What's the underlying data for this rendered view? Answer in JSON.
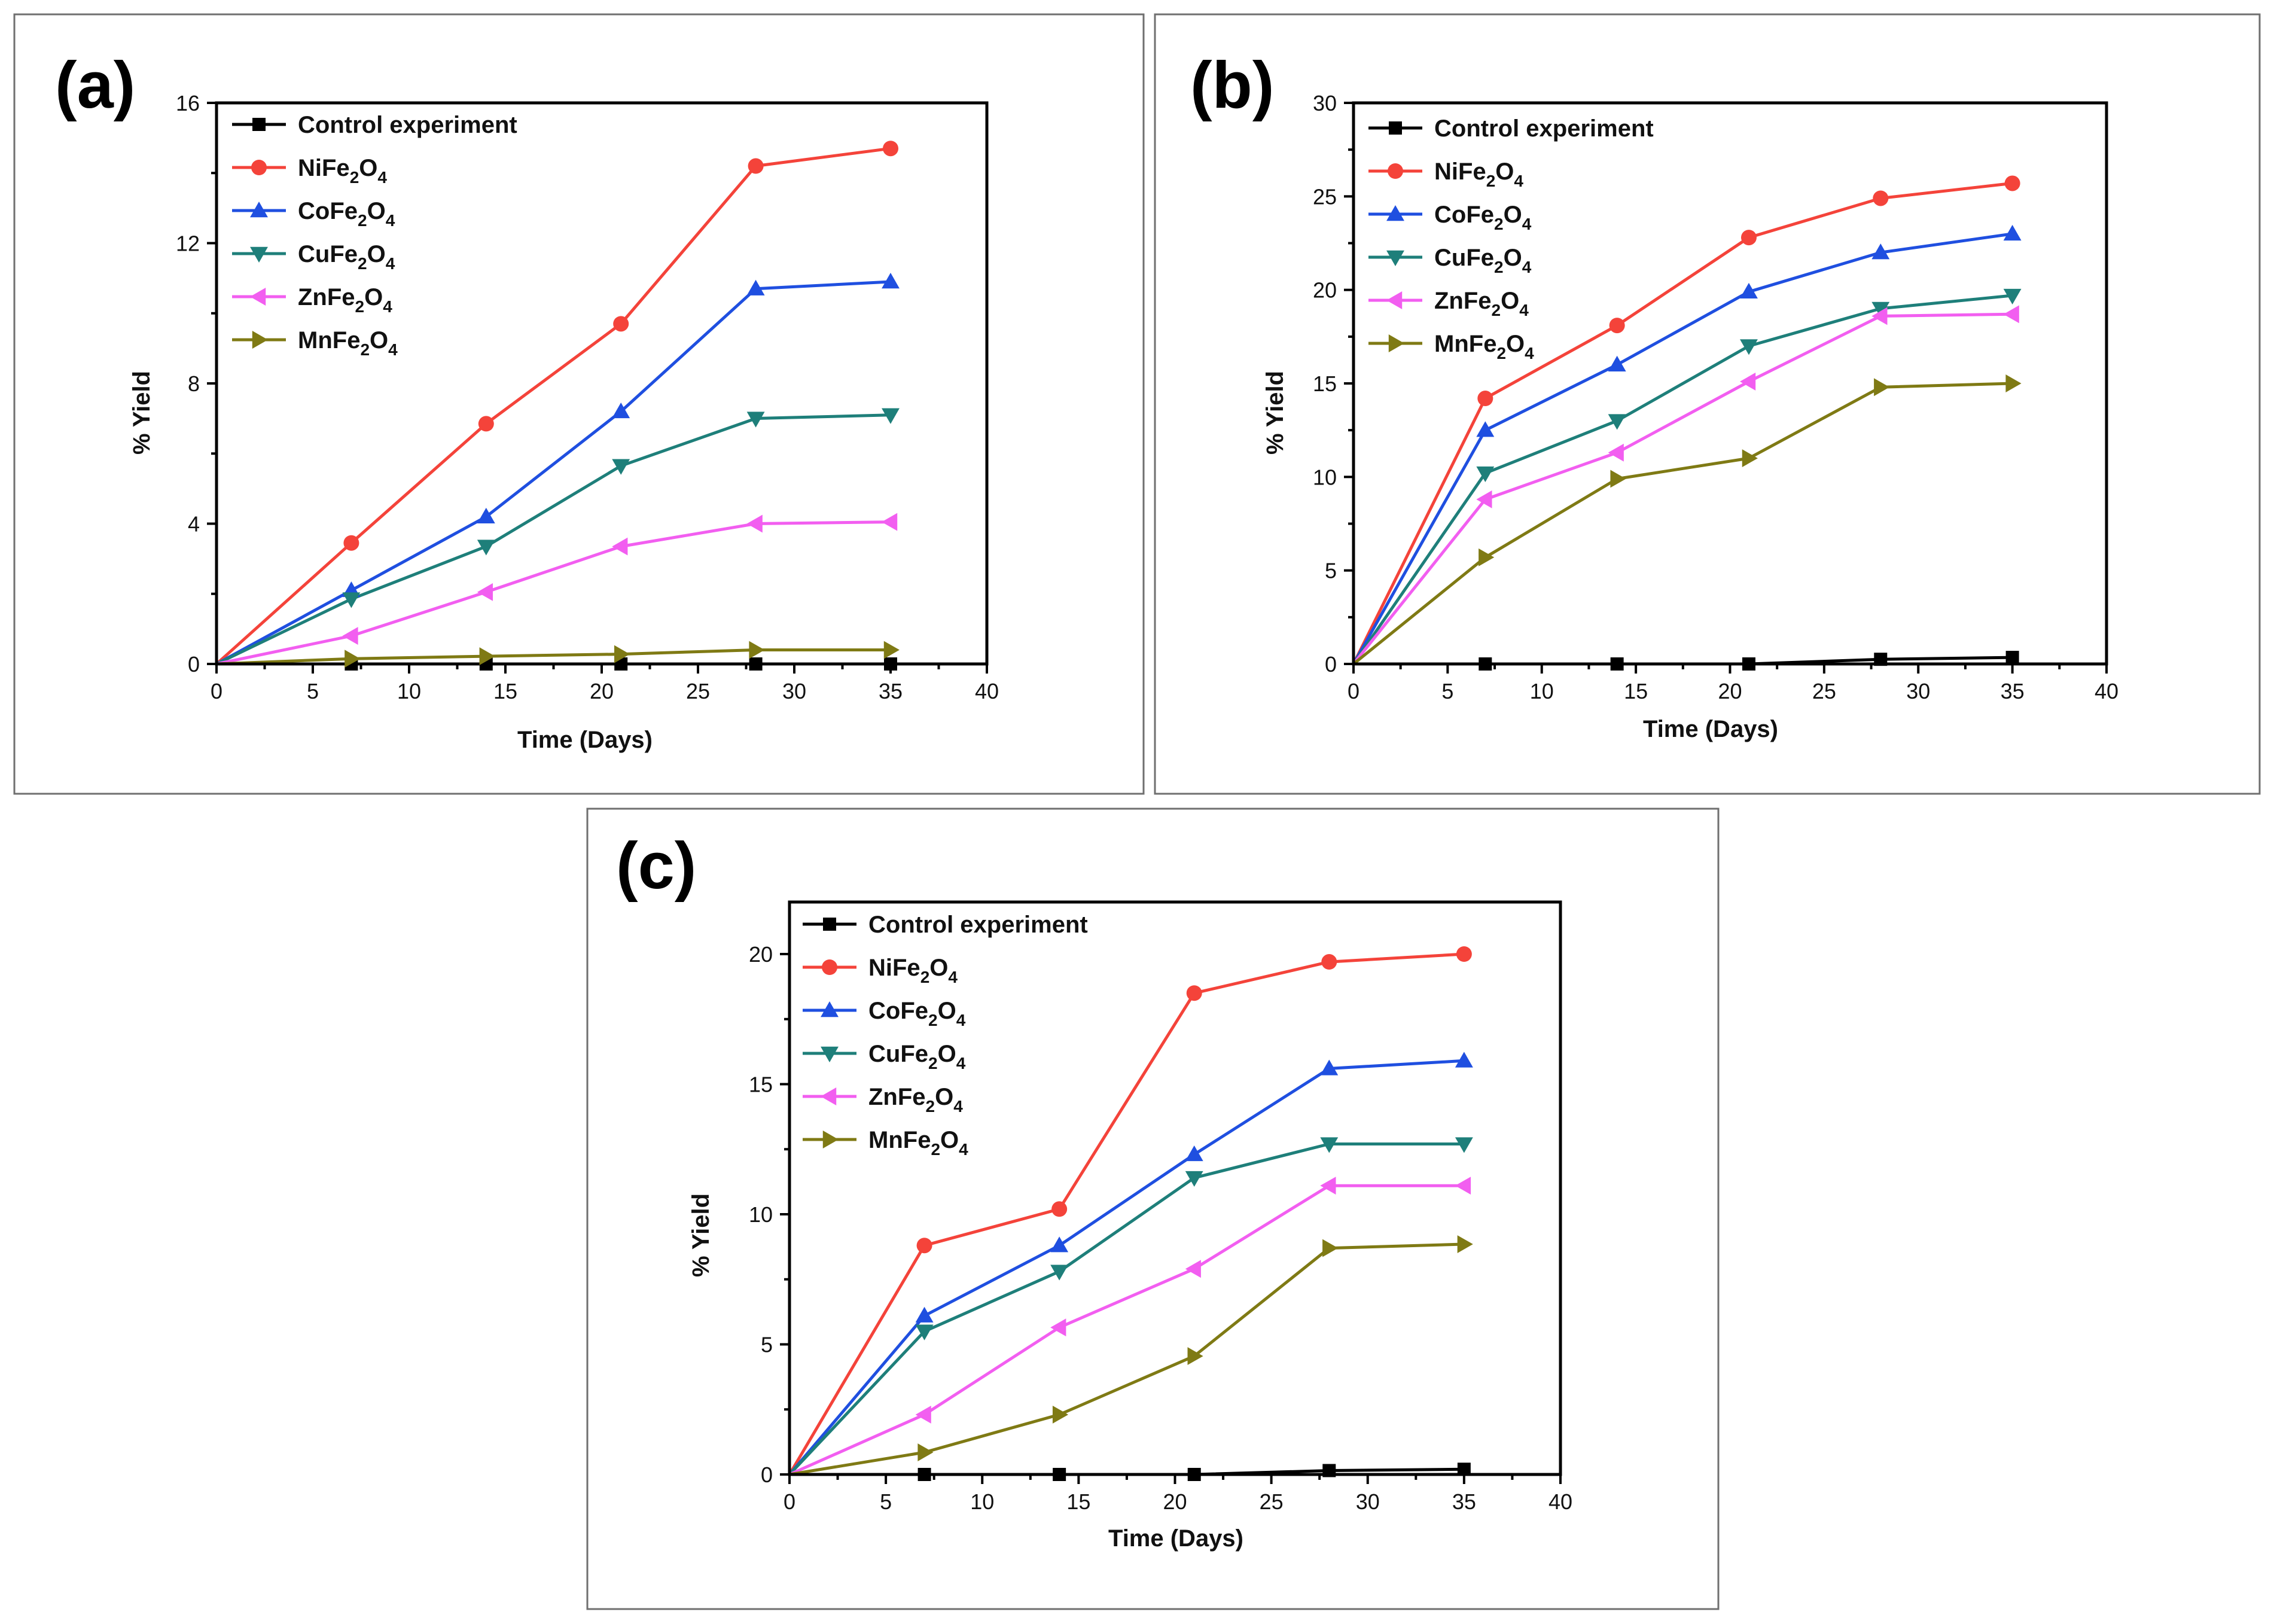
{
  "chart_data": [
    {
      "type": "line",
      "panel_label": "(a)",
      "xlabel": "Time (Days)",
      "ylabel": "% Yield",
      "xlim": [
        0,
        40
      ],
      "ylim": [
        0,
        16
      ],
      "xticks": [
        0,
        5,
        10,
        15,
        20,
        25,
        30,
        35,
        40
      ],
      "yticks": [
        0,
        4,
        8,
        12,
        16
      ],
      "legend_position": "top-left",
      "x": [
        0,
        7,
        14,
        21,
        28,
        35
      ],
      "series": [
        {
          "name": "Control experiment",
          "base": "Control experiment",
          "sub1": "",
          "mid": "",
          "sub2": "",
          "color": "#000000",
          "marker": "square",
          "values": [
            0,
            0,
            0,
            0,
            0,
            0
          ]
        },
        {
          "name": "NiFe2O4",
          "base": "NiFe",
          "sub1": "2",
          "mid": "O",
          "sub2": "4",
          "color": "#f4433a",
          "marker": "circle",
          "values": [
            0,
            3.45,
            6.85,
            9.7,
            14.2,
            14.7
          ]
        },
        {
          "name": "CoFe2O4",
          "base": "CoFe",
          "sub1": "2",
          "mid": "O",
          "sub2": "4",
          "color": "#1f4fe0",
          "marker": "triangle-up",
          "values": [
            0,
            2.1,
            4.2,
            7.2,
            10.7,
            10.9
          ]
        },
        {
          "name": "CuFe2O4",
          "base": "CuFe",
          "sub1": "2",
          "mid": "O",
          "sub2": "4",
          "color": "#1e7f7a",
          "marker": "triangle-down",
          "values": [
            0,
            1.85,
            3.35,
            5.65,
            7.0,
            7.1
          ]
        },
        {
          "name": "ZnFe2O4",
          "base": "ZnFe",
          "sub1": "2",
          "mid": "O",
          "sub2": "4",
          "color": "#f25ef0",
          "marker": "triangle-left",
          "values": [
            0,
            0.8,
            2.05,
            3.35,
            4.0,
            4.05
          ]
        },
        {
          "name": "MnFe2O4",
          "base": "MnFe",
          "sub1": "2",
          "mid": "O",
          "sub2": "4",
          "color": "#7f7a14",
          "marker": "triangle-right",
          "values": [
            0,
            0.15,
            0.22,
            0.28,
            0.4,
            0.4
          ]
        }
      ]
    },
    {
      "type": "line",
      "panel_label": "(b)",
      "xlabel": "Time (Days)",
      "ylabel": "% Yield",
      "xlim": [
        0,
        40
      ],
      "ylim": [
        0,
        30
      ],
      "xticks": [
        0,
        5,
        10,
        15,
        20,
        25,
        30,
        35,
        40
      ],
      "yticks": [
        0,
        5,
        10,
        15,
        20,
        25,
        30
      ],
      "legend_position": "top-left",
      "x": [
        0,
        7,
        14,
        21,
        28,
        35
      ],
      "series": [
        {
          "name": "Control experiment",
          "base": "Control experiment",
          "sub1": "",
          "mid": "",
          "sub2": "",
          "color": "#000000",
          "marker": "square",
          "values": [
            0,
            0,
            0,
            0,
            0.25,
            0.35
          ]
        },
        {
          "name": "NiFe2O4",
          "base": "NiFe",
          "sub1": "2",
          "mid": "O",
          "sub2": "4",
          "color": "#f4433a",
          "marker": "circle",
          "values": [
            0,
            14.2,
            18.1,
            22.8,
            24.9,
            25.7
          ]
        },
        {
          "name": "CoFe2O4",
          "base": "CoFe",
          "sub1": "2",
          "mid": "O",
          "sub2": "4",
          "color": "#1f4fe0",
          "marker": "triangle-up",
          "values": [
            0,
            12.5,
            16.0,
            19.9,
            22.0,
            23.0
          ]
        },
        {
          "name": "CuFe2O4",
          "base": "CuFe",
          "sub1": "2",
          "mid": "O",
          "sub2": "4",
          "color": "#1e7f7a",
          "marker": "triangle-down",
          "values": [
            0,
            10.2,
            13.0,
            17.0,
            19.0,
            19.7
          ]
        },
        {
          "name": "ZnFe2O4",
          "base": "ZnFe",
          "sub1": "2",
          "mid": "O",
          "sub2": "4",
          "color": "#f25ef0",
          "marker": "triangle-left",
          "values": [
            0,
            8.8,
            11.3,
            15.1,
            18.6,
            18.7
          ]
        },
        {
          "name": "MnFe2O4",
          "base": "MnFe",
          "sub1": "2",
          "mid": "O",
          "sub2": "4",
          "color": "#7f7a14",
          "marker": "triangle-right",
          "values": [
            0,
            5.7,
            9.9,
            11.0,
            14.8,
            15.0
          ]
        }
      ]
    },
    {
      "type": "line",
      "panel_label": "(c)",
      "xlabel": "Time (Days)",
      "ylabel": "% Yield",
      "xlim": [
        0,
        40
      ],
      "ylim": [
        0,
        22
      ],
      "xticks": [
        0,
        5,
        10,
        15,
        20,
        25,
        30,
        35,
        40
      ],
      "yticks": [
        0,
        5,
        10,
        15,
        20
      ],
      "legend_position": "top-left",
      "x": [
        0,
        7,
        14,
        21,
        28,
        35
      ],
      "series": [
        {
          "name": "Control experiment",
          "base": "Control experiment",
          "sub1": "",
          "mid": "",
          "sub2": "",
          "color": "#000000",
          "marker": "square",
          "values": [
            0,
            0,
            0,
            0,
            0.15,
            0.2
          ]
        },
        {
          "name": "NiFe2O4",
          "base": "NiFe",
          "sub1": "2",
          "mid": "O",
          "sub2": "4",
          "color": "#f4433a",
          "marker": "circle",
          "values": [
            0,
            8.8,
            10.2,
            18.5,
            19.7,
            20.0
          ]
        },
        {
          "name": "CoFe2O4",
          "base": "CoFe",
          "sub1": "2",
          "mid": "O",
          "sub2": "4",
          "color": "#1f4fe0",
          "marker": "triangle-up",
          "values": [
            0,
            6.1,
            8.8,
            12.3,
            15.6,
            15.9
          ]
        },
        {
          "name": "CuFe2O4",
          "base": "CuFe",
          "sub1": "2",
          "mid": "O",
          "sub2": "4",
          "color": "#1e7f7a",
          "marker": "triangle-down",
          "values": [
            0,
            5.5,
            7.8,
            11.4,
            12.7,
            12.7
          ]
        },
        {
          "name": "ZnFe2O4",
          "base": "ZnFe",
          "sub1": "2",
          "mid": "O",
          "sub2": "4",
          "color": "#f25ef0",
          "marker": "triangle-left",
          "values": [
            0,
            2.3,
            5.65,
            7.9,
            11.1,
            11.1
          ]
        },
        {
          "name": "MnFe2O4",
          "base": "MnFe",
          "sub1": "2",
          "mid": "O",
          "sub2": "4",
          "color": "#7f7a14",
          "marker": "triangle-right",
          "values": [
            0,
            0.85,
            2.3,
            4.55,
            8.7,
            8.85
          ]
        }
      ]
    }
  ]
}
